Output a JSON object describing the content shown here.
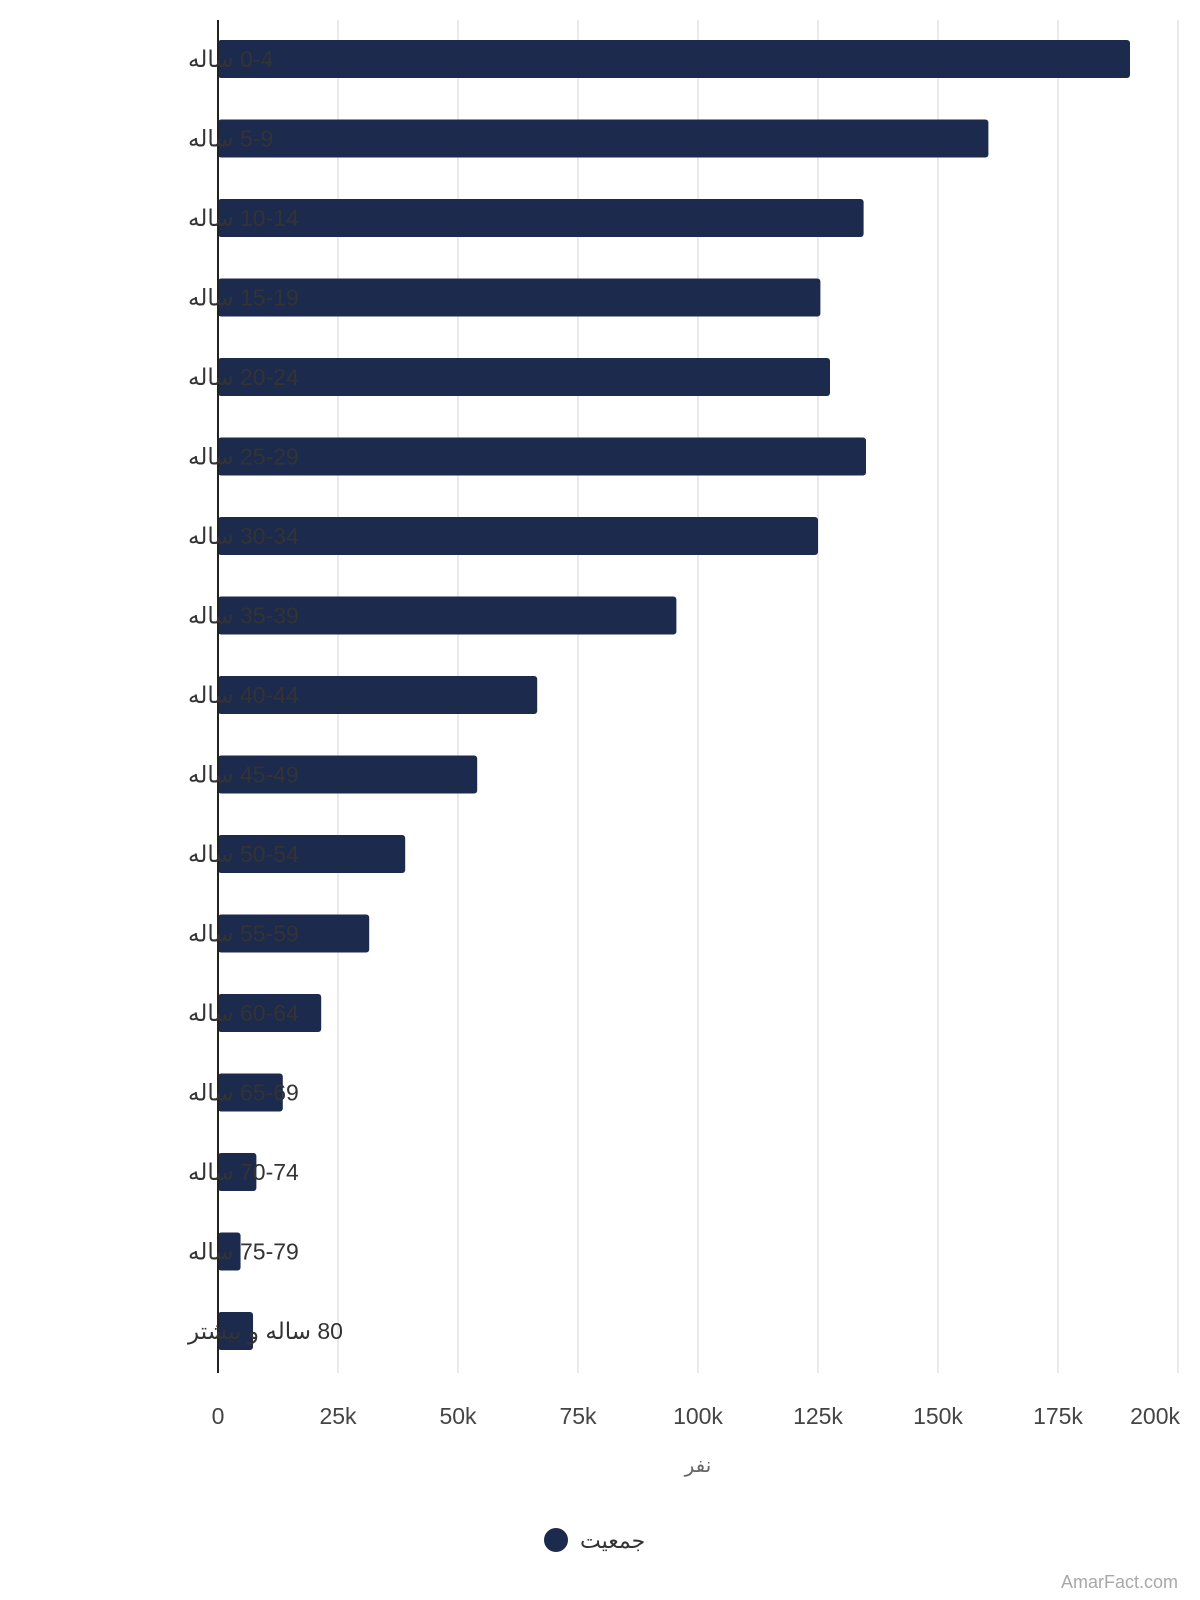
{
  "chart_data": {
    "type": "bar",
    "orientation": "horizontal",
    "categories": [
      "0-4 ساله",
      "5-9 ساله",
      "10-14 ساله",
      "15-19 ساله",
      "20-24 ساله",
      "25-29 ساله",
      "30-34 ساله",
      "35-39 ساله",
      "40-44 ساله",
      "45-49 ساله",
      "50-54 ساله",
      "55-59 ساله",
      "60-64 ساله",
      "65-69 ساله",
      "70-74 ساله",
      "75-79 ساله",
      "80 ساله و بیشتر"
    ],
    "series": [
      {
        "name": "جمعیت",
        "color": "#1c2a4d",
        "values": [
          190000,
          160500,
          134500,
          125500,
          127500,
          135000,
          125000,
          95500,
          66500,
          54000,
          39000,
          31500,
          21500,
          13500,
          8000,
          4700,
          7300
        ]
      }
    ],
    "xlim": [
      0,
      200000
    ],
    "xticks": [
      "0",
      "25k",
      "50k",
      "75k",
      "100k",
      "125k",
      "150k",
      "175k",
      "200k"
    ],
    "xlabel": "نفر",
    "ylabel": "",
    "grid": true,
    "legend_position": "bottom"
  },
  "watermark": "AmarFact.com"
}
